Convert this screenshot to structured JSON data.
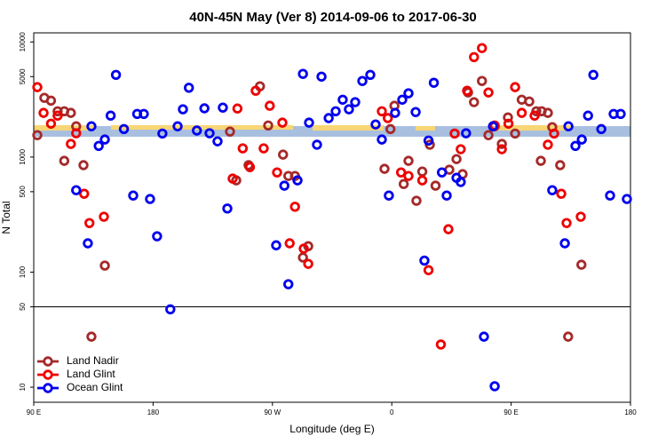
{
  "chart_data": {
    "type": "scatter",
    "title": "40N-45N May (Ver 8)   2014-09-06 to 2017-06-30",
    "x_label": "Longitude (deg E)",
    "y_label": "N Total",
    "ylog": true,
    "xlim": [
      90,
      540
    ],
    "ylim": [
      7.4,
      12000
    ],
    "xticks": [
      {
        "value": 90,
        "label": "90 E"
      },
      180,
      {
        "value": 270,
        "label": "90 W"
      },
      {
        "value": 360,
        "label": "0"
      },
      {
        "value": 450,
        "label": "90 E"
      },
      {
        "value": 540,
        "label": "180"
      }
    ],
    "yticks": [
      10,
      50,
      100,
      500,
      1000,
      5000,
      10000
    ],
    "hline": 50,
    "legend": "bottomleft",
    "series": [
      {
        "name": "Land Nadir",
        "color": "#a52a2a",
        "x": [
          92.7,
          98,
          103,
          108,
          113,
          118,
          122,
          113,
          127.5,
          133.5,
          143.6,
          238,
          242.7,
          252,
          260.6,
          266.8,
          278,
          282,
          287,
          293,
          297,
          354.5,
          362,
          359,
          369,
          372.6,
          378.6,
          383,
          388.7,
          393,
          403.4,
          408.8,
          413.4,
          417.5,
          422,
          428,
          432.9,
          437.6,
          443,
          447.6,
          453,
          458,
          463.7,
          469,
          473,
          477.7,
          481,
          472.4,
          487,
          493,
          503
        ],
        "values": [
          1550,
          3270,
          3090,
          2500,
          2500,
          2420,
          1850,
          927,
          850,
          27.5,
          114,
          1665,
          627,
          850,
          4120,
          1880,
          1050,
          685,
          685,
          134,
          168,
          790,
          2790,
          1750,
          583,
          927,
          417,
          748,
          1280,
          564,
          776,
          960,
          710,
          3640,
          3000,
          4580,
          1550,
          1850,
          1300,
          2210,
          1600,
          3150,
          3040,
          2500,
          2500,
          2420,
          1820,
          927,
          850,
          27.5,
          116
        ]
      },
      {
        "name": "Land Glint",
        "color": "#ee0000",
        "x": [
          92.7,
          97.4,
          103,
          108,
          118,
          122,
          128,
          132,
          142.9,
          240,
          243.6,
          247.6,
          253,
          257.4,
          263.4,
          268,
          273.5,
          277.5,
          283,
          287,
          293.6,
          297,
          352.5,
          357,
          367,
          372.6,
          383,
          387.7,
          402.7,
          407.4,
          412,
          416.8,
          422,
          428,
          432.9,
          437.6,
          443,
          448,
          453,
          458,
          467.7,
          477.7,
          482.4,
          487.8,
          491.8,
          502.5,
          397
        ],
        "values": [
          4050,
          2420,
          1950,
          2290,
          1300,
          1610,
          480,
          267,
          303,
          650,
          2640,
          1190,
          818,
          3770,
          1190,
          2790,
          735,
          1990,
          178,
          370,
          160,
          118,
          2500,
          2180,
          735,
          685,
          627,
          104,
          236,
          1600,
          1170,
          3770,
          7390,
          8850,
          3640,
          1880,
          1170,
          1950,
          4050,
          2420,
          2290,
          1280,
          1600,
          480,
          267,
          303,
          23.5
        ]
      },
      {
        "name": "Ocean Glint",
        "color": "#0000ee",
        "x": [
          130.8,
          122,
          133.5,
          139,
          143.6,
          148,
          152,
          158,
          165,
          168,
          173,
          177.7,
          183,
          187,
          193,
          198.5,
          202.5,
          207,
          213,
          218.7,
          222.6,
          228.6,
          232.6,
          236,
          272.8,
          279,
          282,
          288.9,
          293,
          297.6,
          303.6,
          307,
          312.4,
          317.7,
          323,
          327.7,
          332.4,
          337.8,
          343.8,
          347.8,
          352.5,
          357.8,
          362.5,
          367.9,
          372.6,
          378,
          384.6,
          387.7,
          391.7,
          397.8,
          401.4,
          408.8,
          412,
          416,
          429.5,
          437.6,
          436.3,
          481,
          490.5,
          493.2,
          498.5,
          503.3,
          508,
          512,
          518,
          524.6,
          527.3,
          532.6,
          537.3
        ],
        "values": [
          178,
          515,
          1850,
          1250,
          1420,
          2290,
          5180,
          1750,
          463,
          2370,
          2370,
          432,
          205,
          1600,
          47.5,
          1850,
          2600,
          4000,
          1700,
          2650,
          1610,
          1370,
          2690,
          357,
          171,
          564,
          78.5,
          627,
          5280,
          1990,
          1280,
          5000,
          2180,
          2500,
          3150,
          2600,
          3000,
          4580,
          5180,
          1920,
          1420,
          463,
          2420,
          3150,
          3580,
          2460,
          126,
          1390,
          4420,
          735,
          463,
          660,
          607,
          1610,
          27.5,
          10.2,
          1850,
          515,
          178,
          1850,
          1250,
          1420,
          2290,
          5180,
          1750,
          463,
          2370,
          2370,
          432
        ]
      }
    ]
  }
}
